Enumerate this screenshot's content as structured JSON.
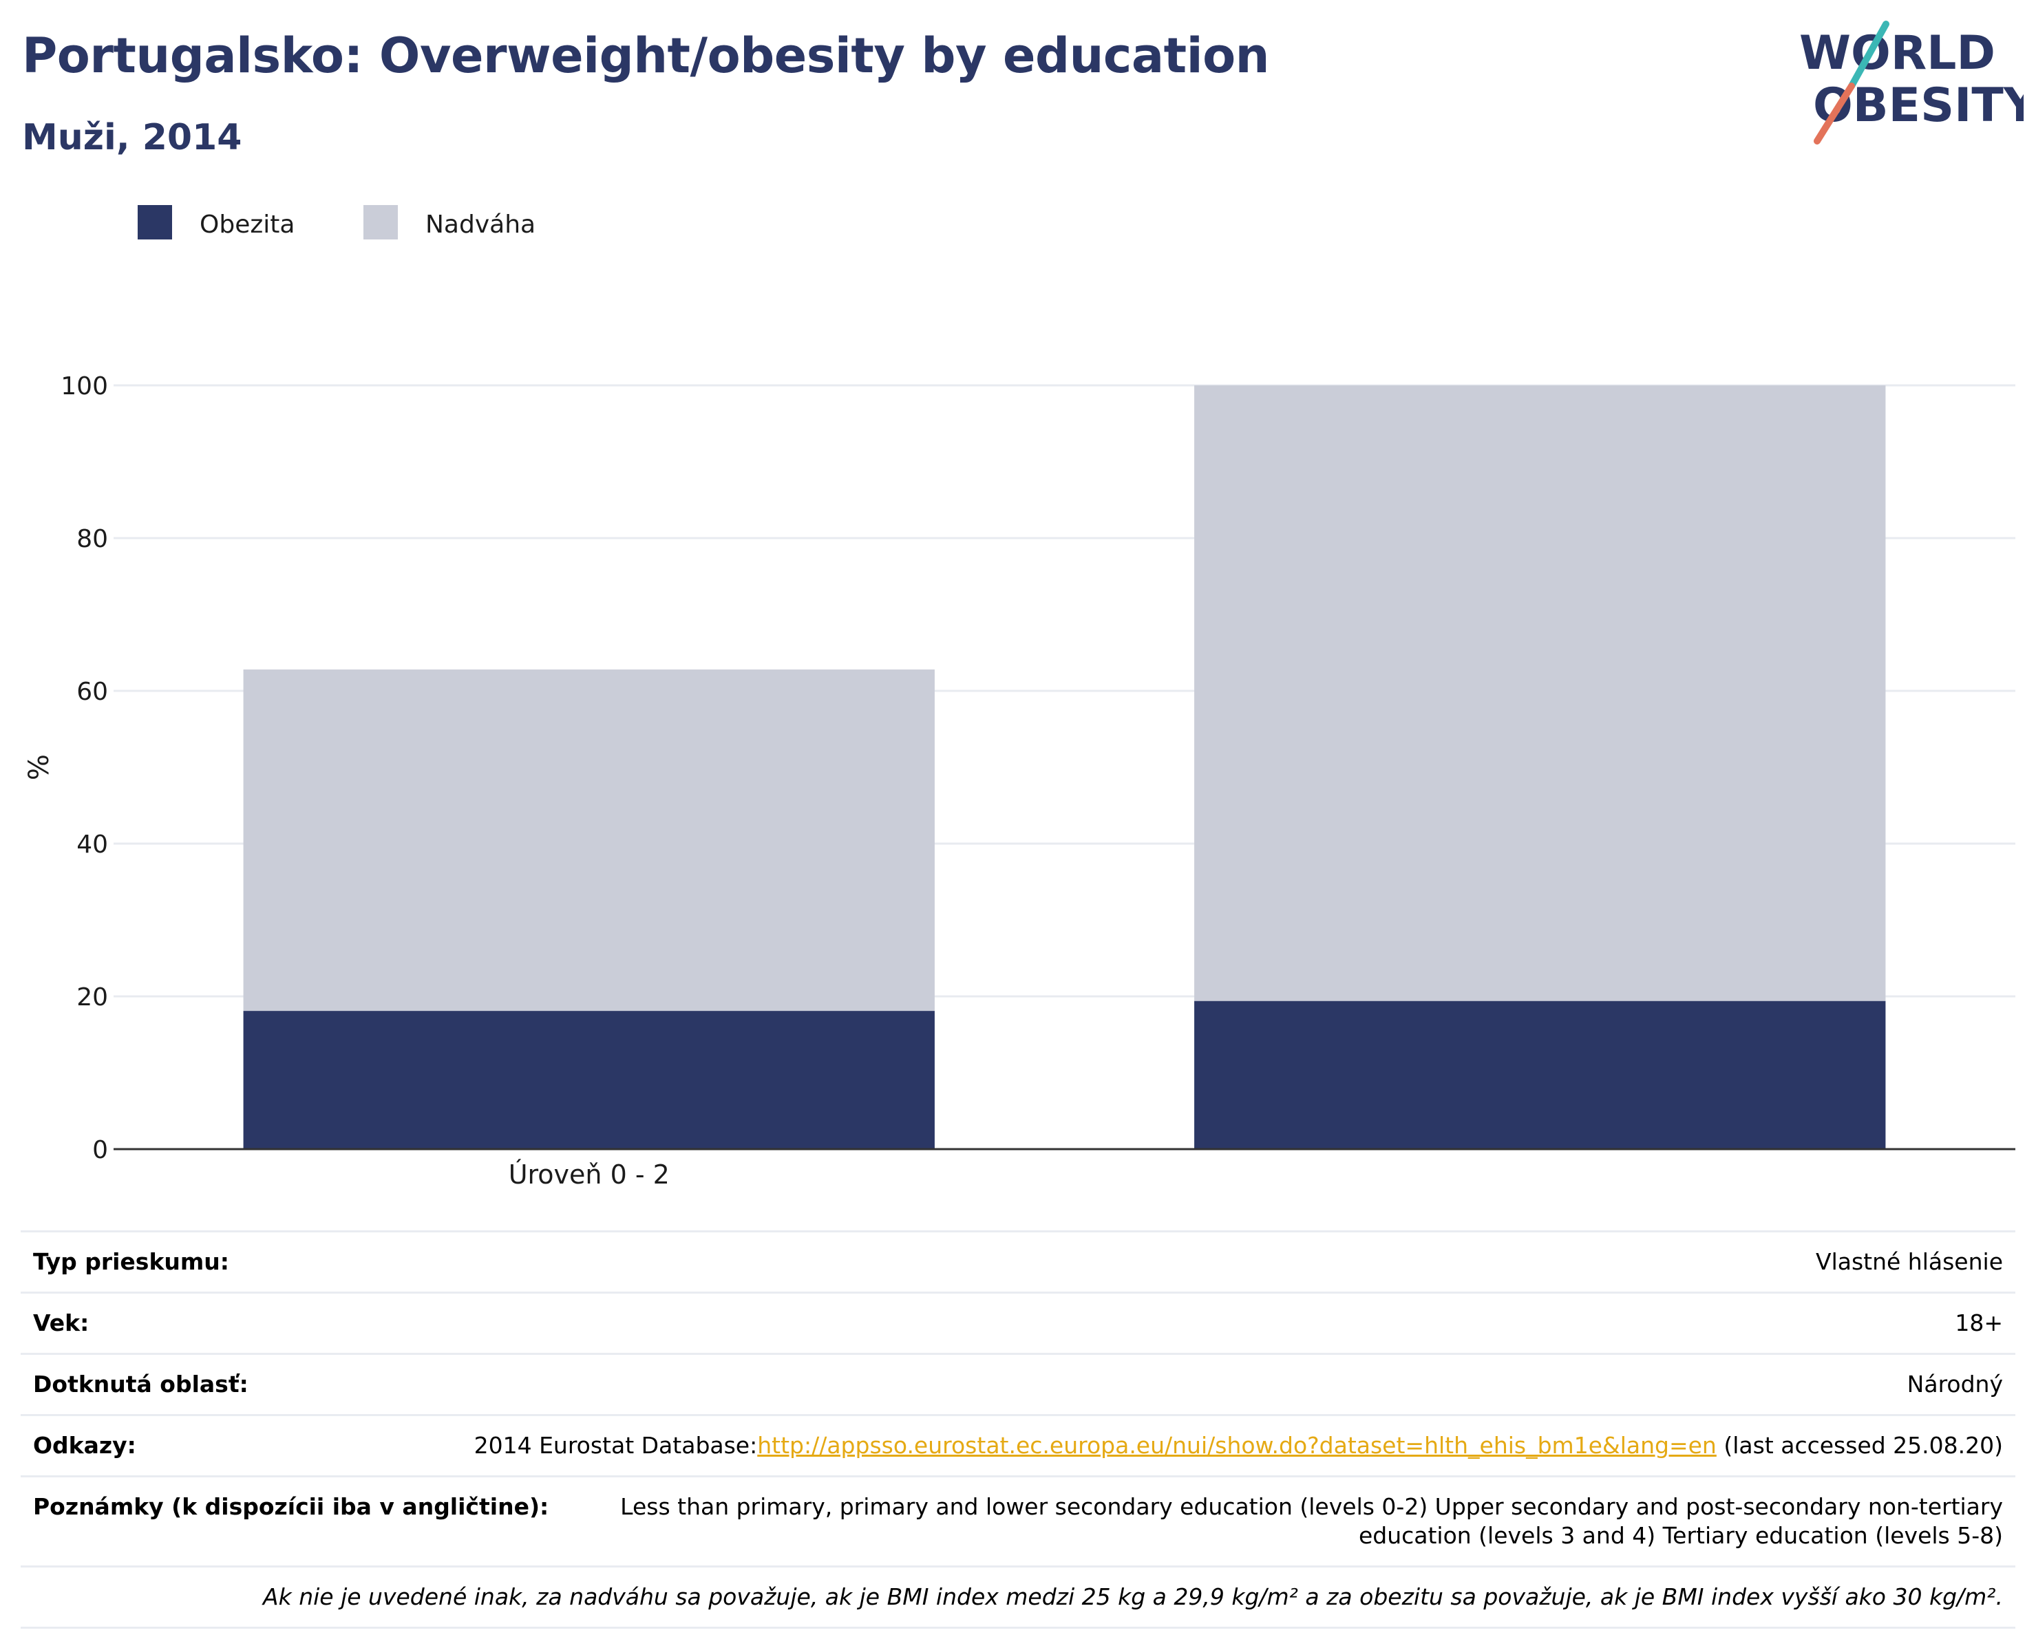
{
  "header": {
    "title": "Portugalsko: Overweight/obesity by education",
    "subtitle": "Muži, 2014"
  },
  "logo": {
    "line1": "WORLD",
    "line2": "OBESITY",
    "colors": {
      "text": "#2b3765",
      "slash_top": "#3bb7b5",
      "slash_bottom": "#e3735a"
    }
  },
  "chart_data": {
    "type": "bar",
    "stacked": true,
    "categories": [
      "Úroveň 0 - 2",
      ""
    ],
    "series": [
      {
        "name": "Obezita",
        "color": "#2b3765",
        "values": [
          18.1,
          19.4
        ]
      },
      {
        "name": "Nadváha",
        "color": "#cacdd8",
        "values": [
          44.7,
          80.6
        ]
      }
    ],
    "ylabel": "%",
    "ylim": [
      0,
      100
    ],
    "yticks": [
      0,
      20,
      40,
      60,
      80,
      100
    ],
    "grid": true,
    "legend_position": "top-left"
  },
  "meta": {
    "rows": [
      {
        "label": "Typ prieskumu:",
        "value": "Vlastné hlásenie"
      },
      {
        "label": "Vek:",
        "value": "18+"
      },
      {
        "label": "Dotknutá oblasť:",
        "value": "Národný"
      }
    ],
    "references": {
      "label": "Odkazy:",
      "prefix": "2014 Eurostat Database:",
      "link": "http://appsso.eurostat.ec.europa.eu/nui/show.do?dataset=hlth_ehis_bm1e&lang=en",
      "suffix": " (last accessed 25.08.20)"
    },
    "notes": {
      "label": "Poznámky (k dispozícii iba v angličtine):",
      "value": "Less than primary, primary and lower secondary education (levels 0-2) Upper secondary and post-secondary non-tertiary education (levels 3 and 4) Tertiary education (levels 5-8)"
    },
    "footnote": "Ak nie je uvedené inak, za nadváhu sa považuje, ak je BMI index medzi 25 kg a 29,9 kg/m² a za obezitu sa považuje, ak je BMI index vyšší ako 30 kg/m²."
  }
}
